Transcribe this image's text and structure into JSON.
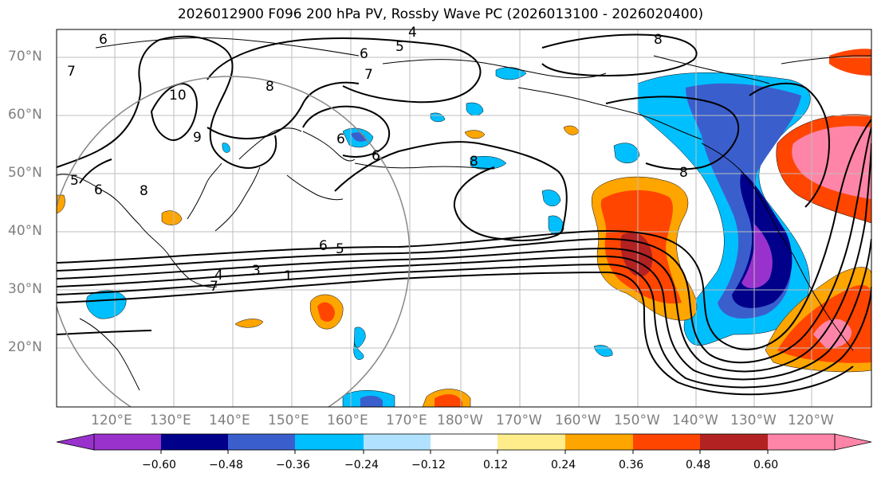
{
  "title": "2026012900 F096 200 hPa PV, Rossby Wave PC (2026013100 - 2026020400)",
  "lat_labels": [
    "70°N",
    "60°N",
    "50°N",
    "40°N",
    "30°N",
    "20°N"
  ],
  "lon_labels": [
    "120°E",
    "130°E",
    "140°E",
    "150°E",
    "160°E",
    "170°E",
    "180°W",
    "170°W",
    "160°W",
    "150°W",
    "140°W",
    "130°W",
    "120°W"
  ],
  "contour_labels": [
    "4",
    "5",
    "6",
    "7",
    "8",
    "10",
    "9",
    "8",
    "6",
    "6",
    "8",
    "6",
    "5",
    "1",
    "3",
    "4",
    "7",
    "8",
    "6",
    "8",
    "5",
    "6",
    "7"
  ],
  "colorbar": {
    "ticks": [
      "−0.60",
      "−0.48",
      "−0.36",
      "−0.24",
      "−0.12",
      "0.12",
      "0.24",
      "0.36",
      "0.48",
      "0.60"
    ],
    "colors": [
      "#9932cc",
      "#00008b",
      "#3a5fcd",
      "#00bfff",
      "#b0e2ff",
      "#ffffff",
      "#ffec8b",
      "#ffa500",
      "#ff4500",
      "#b22222",
      "#ff85a8"
    ]
  }
}
